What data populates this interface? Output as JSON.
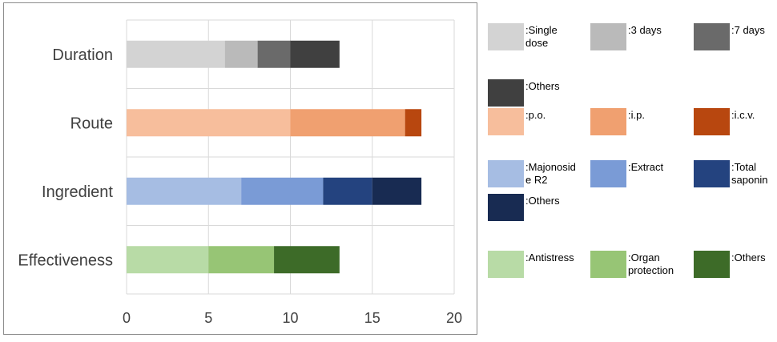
{
  "chart_data": {
    "type": "bar",
    "orientation": "horizontal",
    "stacked": true,
    "categories": [
      "Duration",
      "Route",
      "Ingredient",
      "Effectiveness"
    ],
    "xlim": [
      0,
      20
    ],
    "x_ticks": [
      "0",
      "5",
      "10",
      "15",
      "20"
    ],
    "grid": true,
    "legend_placement": "right",
    "groups": [
      {
        "category": "Duration",
        "segments": [
          {
            "name": ":Single dose",
            "value": 6,
            "color": "#d3d3d3"
          },
          {
            "name": ":3 days",
            "value": 2,
            "color": "#bababa"
          },
          {
            "name": ":7 days",
            "value": 2,
            "color": "#6a6a6a"
          },
          {
            "name": ":Others",
            "value": 3,
            "color": "#404040"
          }
        ]
      },
      {
        "category": "Route",
        "segments": [
          {
            "name": ":p.o.",
            "value": 10,
            "color": "#f7be9c"
          },
          {
            "name": ":i.p.",
            "value": 7,
            "color": "#f0a070"
          },
          {
            "name": ":i.c.v.",
            "value": 1,
            "color": "#b8470f"
          }
        ]
      },
      {
        "category": "Ingredient",
        "segments": [
          {
            "name": ":Majonoside R2",
            "value": 7,
            "color": "#a6bde3"
          },
          {
            "name": ":Extract",
            "value": 5,
            "color": "#7a9bd6"
          },
          {
            "name": ":Total saponin",
            "value": 3,
            "color": "#24437f"
          },
          {
            "name": ":Others",
            "value": 3,
            "color": "#182b52"
          }
        ]
      },
      {
        "category": "Effectiveness",
        "segments": [
          {
            "name": ":Antistress",
            "value": 5,
            "color": "#b8dba6"
          },
          {
            "name": ":Organ protection",
            "value": 4,
            "color": "#97c575"
          },
          {
            "name": ":Others",
            "value": 4,
            "color": "#3d6b28"
          }
        ]
      }
    ]
  }
}
